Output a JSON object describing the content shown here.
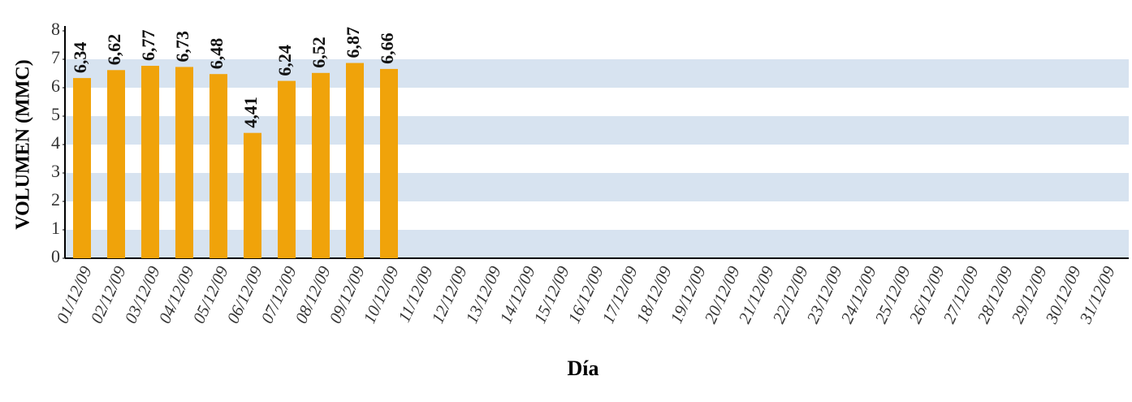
{
  "chart_data": {
    "type": "bar",
    "categories": [
      "01/12/09",
      "02/12/09",
      "03/12/09",
      "04/12/09",
      "05/12/09",
      "06/12/09",
      "07/12/09",
      "08/12/09",
      "09/12/09",
      "10/12/09",
      "11/12/09",
      "12/12/09",
      "13/12/09",
      "14/12/09",
      "15/12/09",
      "16/12/09",
      "17/12/09",
      "18/12/09",
      "19/12/09",
      "20/12/09",
      "21/12/09",
      "22/12/09",
      "23/12/09",
      "24/12/09",
      "25/12/09",
      "26/12/09",
      "27/12/09",
      "28/12/09",
      "29/12/09",
      "30/12/09",
      "31/12/09"
    ],
    "values": [
      6.34,
      6.62,
      6.77,
      6.73,
      6.48,
      4.41,
      6.24,
      6.52,
      6.87,
      6.66,
      null,
      null,
      null,
      null,
      null,
      null,
      null,
      null,
      null,
      null,
      null,
      null,
      null,
      null,
      null,
      null,
      null,
      null,
      null,
      null,
      null
    ],
    "value_labels": [
      "6,34",
      "6,62",
      "6,77",
      "6,73",
      "6,48",
      "4,41",
      "6,24",
      "6,52",
      "6,87",
      "6,66",
      null,
      null,
      null,
      null,
      null,
      null,
      null,
      null,
      null,
      null,
      null,
      null,
      null,
      null,
      null,
      null,
      null,
      null,
      null,
      null,
      null
    ],
    "color": "#f0a30a",
    "band_color": "#d7e3f0",
    "ylim": [
      0,
      8
    ],
    "yticks": [
      0,
      1,
      2,
      3,
      4,
      5,
      6,
      7,
      8
    ],
    "y_label": "VOLUMEN (MMC)",
    "x_label": "Día"
  }
}
